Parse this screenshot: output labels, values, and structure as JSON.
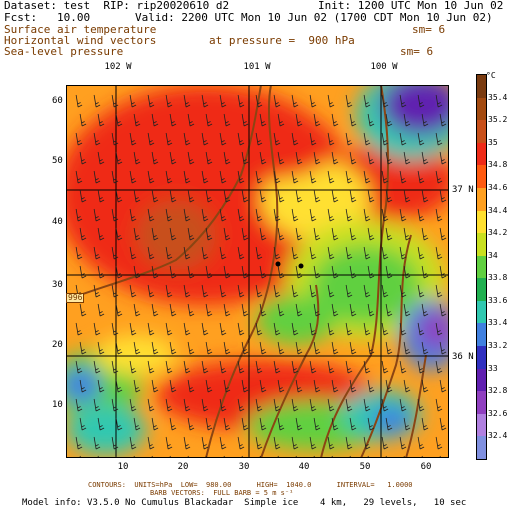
{
  "header": {
    "dataset": "Dataset: test  RIP: rip20020610 d2",
    "init": "Init: 1200 UTC Mon 10 Jun 02",
    "fcst": "Fcst:   10.00",
    "valid": "Valid: 2200 UTC Mon 10 Jun 02 (1700 CDT Mon 10 Jun 02)",
    "field1": "Surface air temperature",
    "field1_sm": "sm= 6",
    "field2": "Horizontal wind vectors",
    "field2_pressure": "at pressure =  900 hPa",
    "field3": "Sea-level pressure",
    "field3_sm": "sm= 6"
  },
  "footer": {
    "contours": "CONTOURS:  UNITS=hPa  LOW=  980.00      HIGH=  1040.0      INTERVAL=   1.0000",
    "barbs": "BARB VECTORS:  FULL BARB = 5 m s⁻¹",
    "model": "Model info: V3.5.0 No Cumulus Blackadar  Simple ice    4 km,   29 levels,   10 sec"
  },
  "axes": {
    "x_ticks": [
      "10",
      "20",
      "30",
      "40",
      "50",
      "60"
    ],
    "y_ticks": [
      "10",
      "20",
      "30",
      "40",
      "50",
      "60"
    ],
    "lon_labels": [
      "102 W",
      "101 W",
      "100 W"
    ],
    "lat_labels": [
      "37 N",
      "36 N"
    ],
    "isobar_label": "996"
  },
  "colorbar": {
    "unit": "°C",
    "labels": [
      "35.4",
      "35.2",
      "35",
      "34.8",
      "34.6",
      "34.4",
      "34.2",
      "34",
      "33.8",
      "33.6",
      "33.4",
      "33.2",
      "33",
      "32.8",
      "32.6",
      "32.4"
    ],
    "colors": [
      "#7a3b10",
      "#a34a10",
      "#c8501a",
      "#ef2b18",
      "#ff5a10",
      "#ffa020",
      "#ffe030",
      "#c8e020",
      "#60d040",
      "#20b050",
      "#30c8b0",
      "#4080e0",
      "#3030c0",
      "#6020b0",
      "#9040c0",
      "#b080e0",
      "#8090e0"
    ]
  }
}
